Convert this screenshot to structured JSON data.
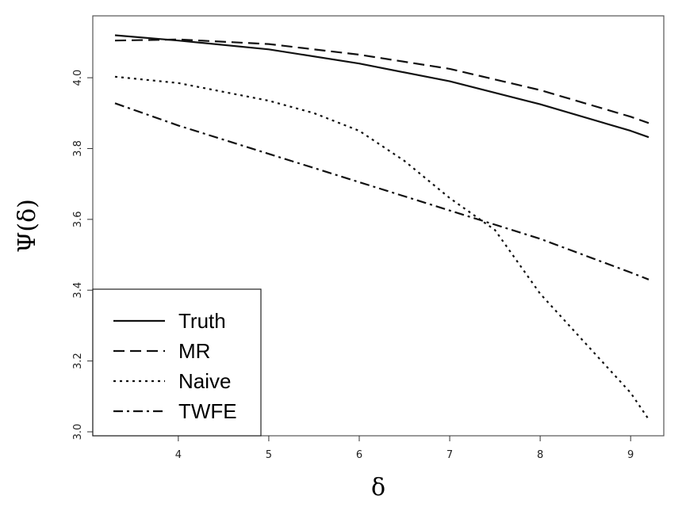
{
  "chart_data": {
    "type": "line",
    "xlabel": "δ",
    "ylabel": "Ψ(δ)",
    "xlim": [
      3.3,
      9.2
    ],
    "ylim": [
      3.0,
      4.13
    ],
    "xticks": [
      4,
      5,
      6,
      7,
      8,
      9
    ],
    "yticks": [
      3.0,
      3.2,
      3.4,
      3.6,
      3.8,
      4.0
    ],
    "xtick_labels": [
      "4",
      "5",
      "6",
      "7",
      "8",
      "9"
    ],
    "ytick_labels": [
      "3.0",
      "3.2",
      "3.4",
      "3.6",
      "3.8",
      "4.0"
    ],
    "grid": false,
    "legend_position": "bottom-left",
    "series": [
      {
        "name": "Truth",
        "style": "solid",
        "x": [
          3.3,
          4,
          5,
          6,
          7,
          8,
          9,
          9.2
        ],
        "y": [
          4.12,
          4.105,
          4.08,
          4.04,
          3.99,
          3.925,
          3.85,
          3.832
        ]
      },
      {
        "name": "MR",
        "style": "dashed",
        "x": [
          3.3,
          4,
          5,
          6,
          7,
          8,
          9,
          9.2
        ],
        "y": [
          4.105,
          4.108,
          4.095,
          4.065,
          4.025,
          3.965,
          3.89,
          3.872
        ]
      },
      {
        "name": "Naive",
        "style": "dotted",
        "x": [
          3.3,
          4,
          5,
          5.5,
          6,
          6.5,
          7,
          7.5,
          8,
          8.5,
          9,
          9.2
        ],
        "y": [
          4.003,
          3.985,
          3.935,
          3.9,
          3.85,
          3.765,
          3.66,
          3.57,
          3.39,
          3.25,
          3.11,
          3.035
        ]
      },
      {
        "name": "TWFE",
        "style": "dashdot",
        "x": [
          3.3,
          4,
          5,
          6,
          7,
          8,
          9,
          9.2
        ],
        "y": [
          3.928,
          3.865,
          3.785,
          3.705,
          3.625,
          3.545,
          3.45,
          3.43
        ]
      }
    ]
  }
}
